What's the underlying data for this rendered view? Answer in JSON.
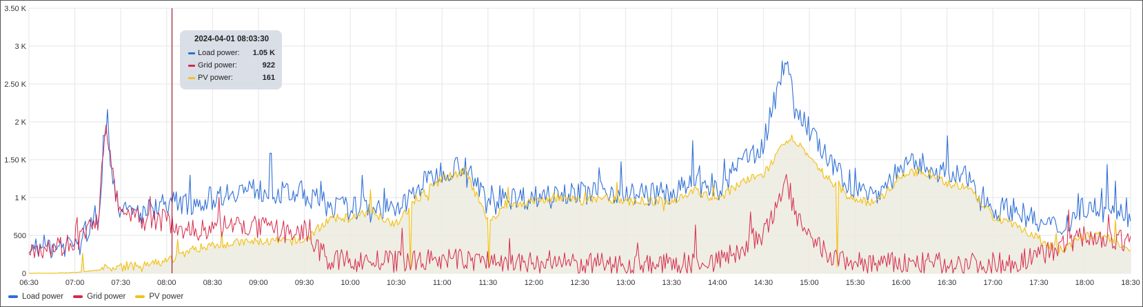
{
  "colors": {
    "load": "#2f6fd6",
    "grid": "#d6294a",
    "pv": "#f2c21b",
    "pv_fill": "#ecebdf",
    "gridlines": "#e6e6e6",
    "cursor": "#a0182c"
  },
  "tooltip": {
    "time": "2024-04-01 08:03:30",
    "rows": [
      {
        "name": "Load power:",
        "value": "1.05 K",
        "color": "#2f6fd6"
      },
      {
        "name": "Grid power:",
        "value": "922",
        "color": "#d6294a"
      },
      {
        "name": "PV power:",
        "value": "161",
        "color": "#f2c21b"
      }
    ]
  },
  "legend": [
    {
      "name": "Load power",
      "color": "#2f6fd6"
    },
    {
      "name": "Grid power",
      "color": "#d6294a"
    },
    {
      "name": "PV power",
      "color": "#f2c21b"
    }
  ],
  "chart_data": {
    "type": "line",
    "title": "",
    "xlabel": "",
    "ylabel": "",
    "ylim": [
      0,
      3500
    ],
    "xlim": [
      "06:30",
      "18:30"
    ],
    "y_ticks": [
      0,
      500,
      1000,
      1500,
      2000,
      2500,
      3000,
      3500
    ],
    "y_tick_labels": [
      "0",
      "500",
      "1 K",
      "1.50 K",
      "2 K",
      "2.50 K",
      "3 K",
      "3.50 K"
    ],
    "x_tick_labels": [
      "06:30",
      "07:00",
      "07:30",
      "08:00",
      "08:30",
      "09:00",
      "09:30",
      "10:00",
      "10:30",
      "11:00",
      "11:30",
      "12:00",
      "12:30",
      "13:00",
      "13:30",
      "14:00",
      "14:30",
      "15:00",
      "15:30",
      "16:00",
      "16:30",
      "17:00",
      "17:30",
      "18:00",
      "18:30"
    ],
    "grid": true,
    "legend_position": "bottom-left",
    "cursor_time": "08:03:30",
    "series": [
      {
        "name": "Load power",
        "x": [
          "06:30",
          "06:45",
          "07:00",
          "07:15",
          "07:20",
          "07:25",
          "07:30",
          "07:45",
          "08:00",
          "08:15",
          "08:30",
          "08:45",
          "09:00",
          "09:15",
          "09:30",
          "09:45",
          "10:00",
          "10:15",
          "10:30",
          "10:45",
          "11:00",
          "11:15",
          "11:30",
          "11:45",
          "12:00",
          "12:15",
          "12:30",
          "12:45",
          "13:00",
          "13:15",
          "13:30",
          "13:45",
          "14:00",
          "14:15",
          "14:30",
          "14:40",
          "14:45",
          "14:50",
          "15:00",
          "15:15",
          "15:30",
          "15:45",
          "16:00",
          "16:15",
          "16:30",
          "16:45",
          "17:00",
          "17:15",
          "17:30",
          "17:45",
          "18:00",
          "18:15",
          "18:30"
        ],
        "y": [
          350,
          350,
          400,
          700,
          1900,
          1300,
          800,
          800,
          950,
          900,
          1000,
          1100,
          1100,
          1050,
          1050,
          900,
          850,
          900,
          800,
          1150,
          1350,
          1450,
          900,
          1000,
          1000,
          1100,
          1050,
          1100,
          1050,
          1050,
          1050,
          1200,
          1050,
          1450,
          1700,
          2500,
          2900,
          2200,
          1900,
          1400,
          1100,
          1050,
          1400,
          1450,
          1300,
          1250,
          850,
          850,
          650,
          600,
          900,
          800,
          750
        ]
      },
      {
        "name": "Grid power",
        "x": [
          "06:30",
          "06:45",
          "07:00",
          "07:15",
          "07:20",
          "07:25",
          "07:30",
          "07:45",
          "08:00",
          "08:15",
          "08:30",
          "08:45",
          "09:00",
          "09:15",
          "09:30",
          "09:45",
          "10:00",
          "10:15",
          "10:30",
          "10:45",
          "11:00",
          "11:15",
          "11:30",
          "11:45",
          "12:00",
          "12:15",
          "12:30",
          "12:45",
          "13:00",
          "13:15",
          "13:30",
          "13:45",
          "14:00",
          "14:15",
          "14:30",
          "14:40",
          "14:45",
          "14:50",
          "15:00",
          "15:15",
          "15:30",
          "15:45",
          "16:00",
          "16:15",
          "16:30",
          "16:45",
          "17:00",
          "17:15",
          "17:30",
          "17:45",
          "18:00",
          "18:15",
          "18:30"
        ],
        "y": [
          350,
          350,
          400,
          700,
          1900,
          1250,
          750,
          700,
          700,
          550,
          600,
          650,
          600,
          550,
          550,
          180,
          160,
          160,
          150,
          170,
          180,
          180,
          160,
          140,
          130,
          130,
          120,
          120,
          120,
          110,
          120,
          140,
          160,
          300,
          500,
          900,
          1300,
          800,
          450,
          200,
          140,
          130,
          130,
          130,
          130,
          130,
          130,
          150,
          250,
          350,
          500,
          450,
          400
        ]
      },
      {
        "name": "PV power",
        "x": [
          "06:30",
          "06:45",
          "07:00",
          "07:15",
          "07:20",
          "07:25",
          "07:30",
          "07:45",
          "08:00",
          "08:15",
          "08:30",
          "08:45",
          "09:00",
          "09:15",
          "09:30",
          "09:45",
          "10:00",
          "10:15",
          "10:30",
          "10:45",
          "11:00",
          "11:15",
          "11:30",
          "11:45",
          "12:00",
          "12:15",
          "12:30",
          "12:45",
          "13:00",
          "13:15",
          "13:30",
          "13:45",
          "14:00",
          "14:15",
          "14:30",
          "14:40",
          "14:45",
          "14:50",
          "15:00",
          "15:15",
          "15:30",
          "15:45",
          "16:00",
          "16:15",
          "16:30",
          "16:45",
          "17:00",
          "17:15",
          "17:30",
          "17:45",
          "18:00",
          "18:15",
          "18:30"
        ],
        "y": [
          0,
          0,
          10,
          40,
          60,
          70,
          80,
          100,
          160,
          300,
          380,
          400,
          420,
          420,
          430,
          700,
          750,
          800,
          650,
          1000,
          1250,
          1350,
          700,
          900,
          950,
          1000,
          950,
          1000,
          950,
          950,
          950,
          1100,
          950,
          1200,
          1300,
          1600,
          1700,
          1800,
          1500,
          1200,
          950,
          950,
          1300,
          1350,
          1200,
          1100,
          750,
          650,
          450,
          300,
          500,
          480,
          260
        ]
      }
    ]
  }
}
